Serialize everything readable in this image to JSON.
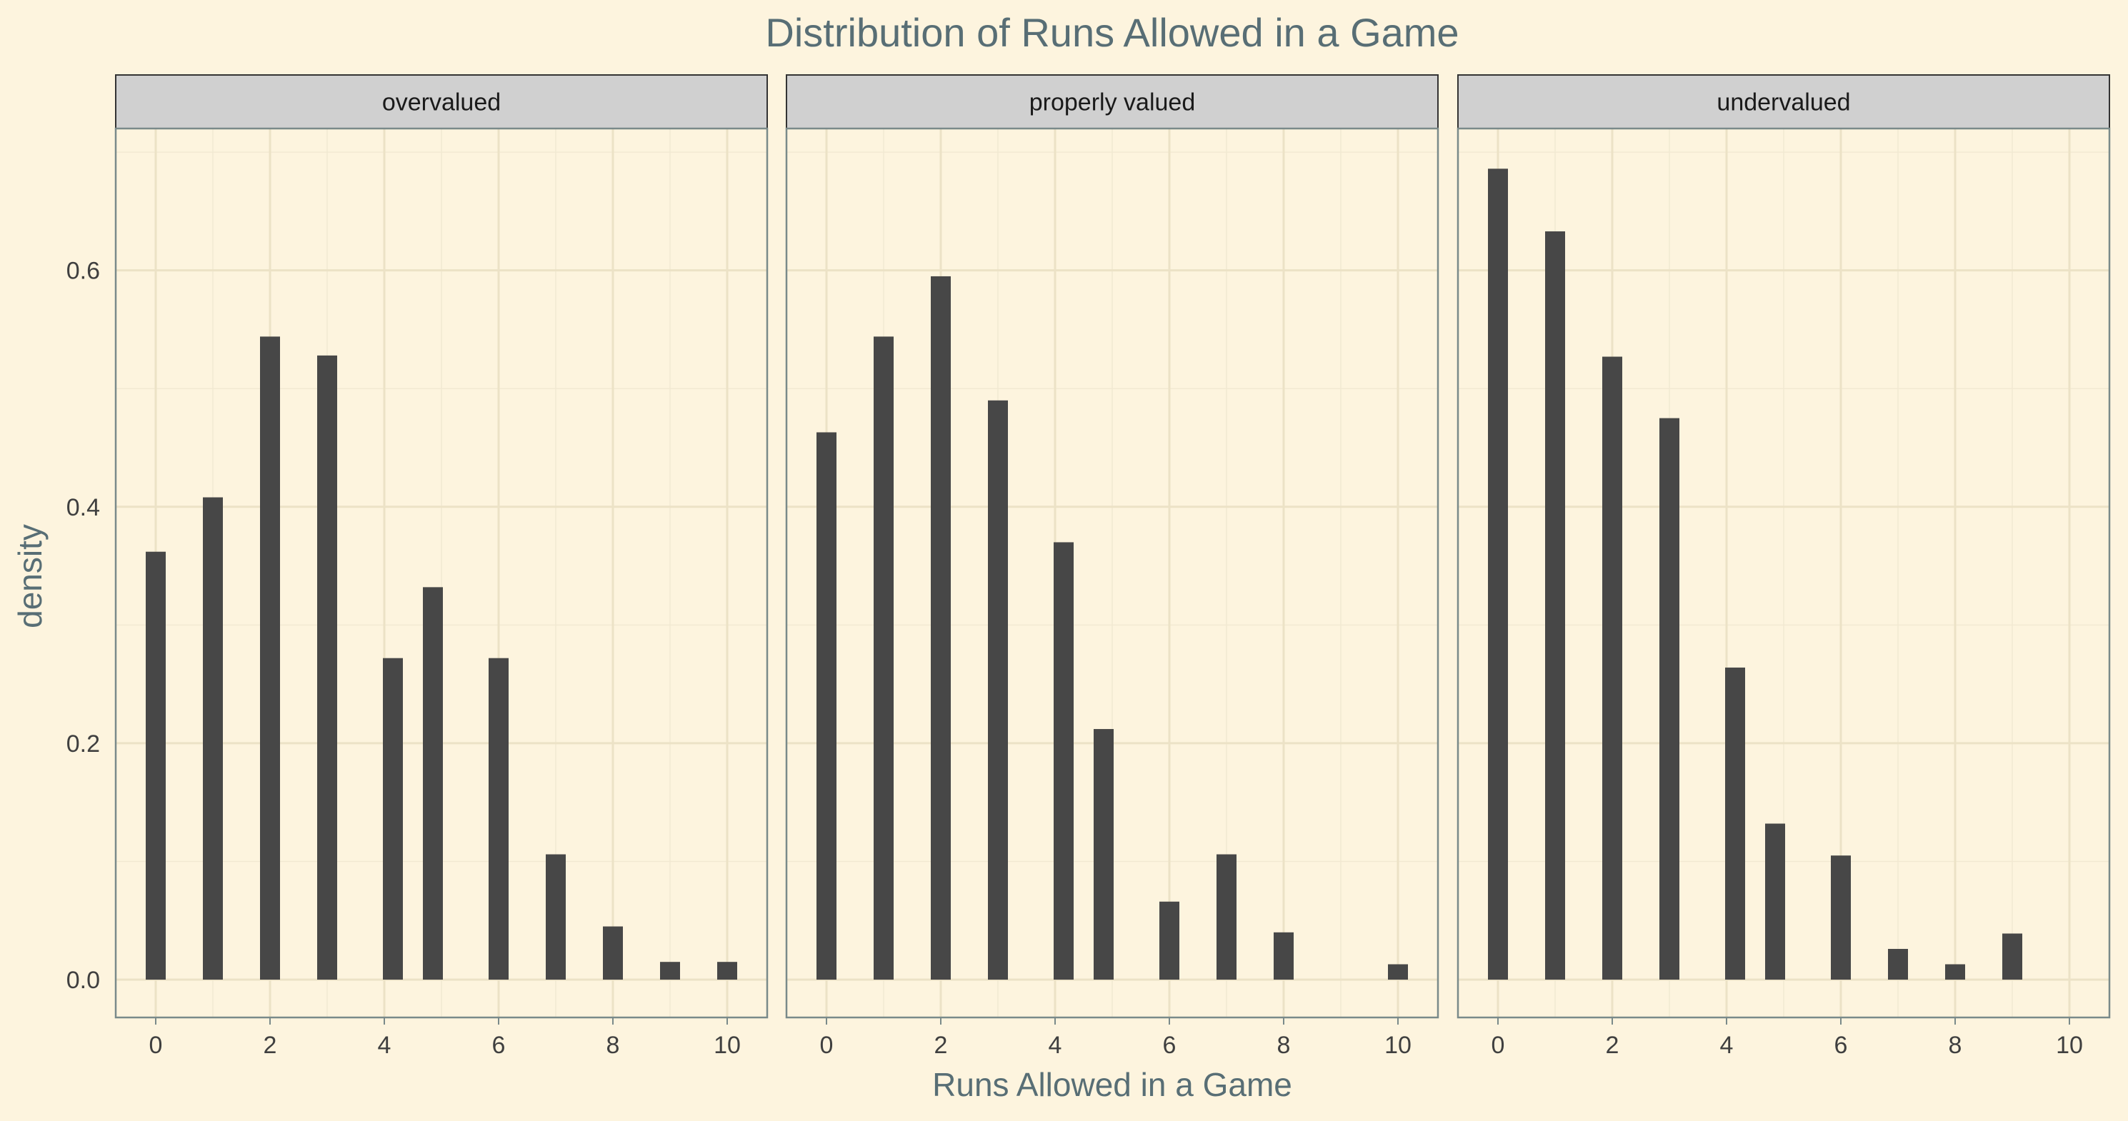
{
  "chart_data": {
    "type": "bar",
    "title": "Distribution of Runs Allowed in a Game",
    "xlabel": "Runs Allowed in a Game",
    "ylabel": "density",
    "xlim": [
      -0.7,
      10.7
    ],
    "ylim": [
      -0.032,
      0.72
    ],
    "x_ticks": [
      0,
      2,
      4,
      6,
      8,
      10
    ],
    "y_ticks": [
      0.0,
      0.2,
      0.4,
      0.6
    ],
    "y_tick_labels": [
      "0.0",
      "0.2",
      "0.4",
      "0.6"
    ],
    "grid": true,
    "legend": "none",
    "bar_color": "#474747",
    "background_color": "#fdf4de",
    "facets": [
      {
        "label": "overvalued",
        "bars": [
          {
            "x": 0,
            "density": 0.362
          },
          {
            "x": 1,
            "density": 0.408
          },
          {
            "x": 2,
            "density": 0.544
          },
          {
            "x": 3,
            "density": 0.528
          },
          {
            "x": 4.15,
            "density": 0.272
          },
          {
            "x": 4.85,
            "density": 0.332
          },
          {
            "x": 6,
            "density": 0.272
          },
          {
            "x": 7,
            "density": 0.106
          },
          {
            "x": 8,
            "density": 0.045
          },
          {
            "x": 9,
            "density": 0.015
          },
          {
            "x": 10,
            "density": 0.015
          }
        ]
      },
      {
        "label": "properly valued",
        "bars": [
          {
            "x": 0,
            "density": 0.463
          },
          {
            "x": 1,
            "density": 0.544
          },
          {
            "x": 2,
            "density": 0.595
          },
          {
            "x": 3,
            "density": 0.49
          },
          {
            "x": 4.15,
            "density": 0.37
          },
          {
            "x": 4.85,
            "density": 0.212
          },
          {
            "x": 6,
            "density": 0.066
          },
          {
            "x": 7,
            "density": 0.106
          },
          {
            "x": 8,
            "density": 0.04
          },
          {
            "x": 10,
            "density": 0.013
          }
        ]
      },
      {
        "label": "undervalued",
        "bars": [
          {
            "x": 0,
            "density": 0.686
          },
          {
            "x": 1,
            "density": 0.633
          },
          {
            "x": 2,
            "density": 0.527
          },
          {
            "x": 3,
            "density": 0.475
          },
          {
            "x": 4.15,
            "density": 0.264
          },
          {
            "x": 4.85,
            "density": 0.132
          },
          {
            "x": 6,
            "density": 0.105
          },
          {
            "x": 7,
            "density": 0.026
          },
          {
            "x": 8,
            "density": 0.013
          },
          {
            "x": 9,
            "density": 0.039
          }
        ]
      }
    ]
  }
}
